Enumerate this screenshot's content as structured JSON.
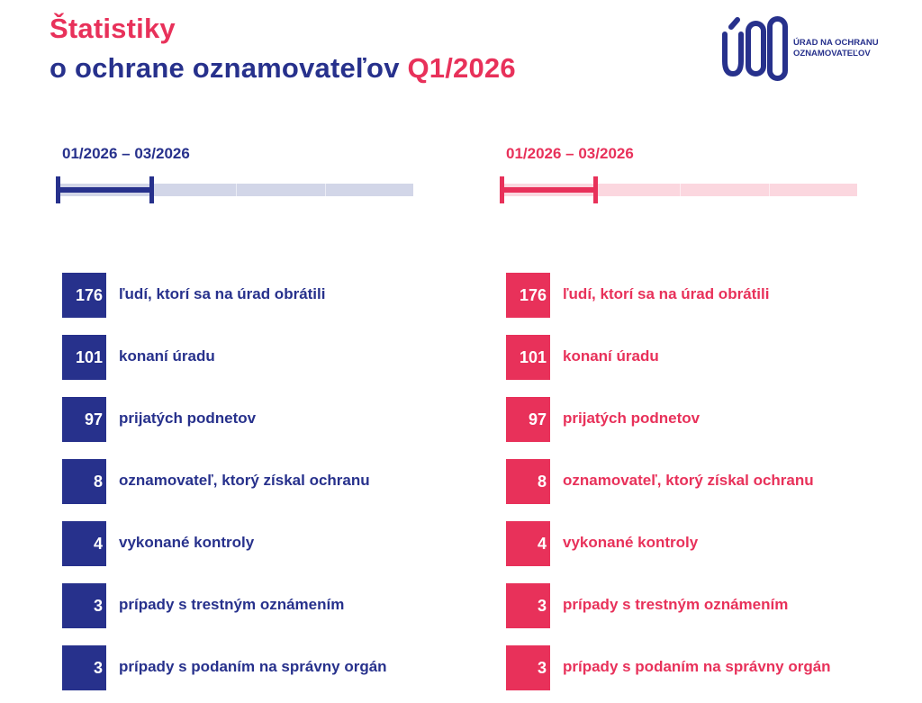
{
  "header": {
    "title_line1": "Štatistiky",
    "title_line2_main": "o ochrane oznamovateľov",
    "title_line2_accent": "Q1/2026"
  },
  "logo": {
    "mark": "ÚOO",
    "line1": "ÚRAD NA OCHRANU",
    "line2": "OZNAMOVATEĽOV"
  },
  "colors": {
    "navy": "#27318c",
    "pink": "#e8315a",
    "navy_light": "#d2d6e8",
    "pink_light": "#fbd7df"
  },
  "columns": [
    {
      "theme": "navy",
      "period": "01/2026 – 03/2026",
      "progress_fraction": 0.25,
      "stats": [
        {
          "value": "176",
          "label": "ľudí, ktorí sa na úrad obrátili"
        },
        {
          "value": "101",
          "label": "konaní úradu"
        },
        {
          "value": "97",
          "label": "prijatých podnetov"
        },
        {
          "value": "8",
          "label": "oznamovateľ, ktorý získal ochranu"
        },
        {
          "value": "4",
          "label": "vykonané kontroly"
        },
        {
          "value": "3",
          "label": "prípady s trestným oznámením"
        },
        {
          "value": "3",
          "label": "prípady s podaním na správny orgán"
        }
      ]
    },
    {
      "theme": "pink",
      "period": "01/2026 – 03/2026",
      "progress_fraction": 0.25,
      "stats": [
        {
          "value": "176",
          "label": "ľudí, ktorí sa na úrad obrátili"
        },
        {
          "value": "101",
          "label": "konaní úradu"
        },
        {
          "value": "97",
          "label": "prijatých podnetov"
        },
        {
          "value": "8",
          "label": "oznamovateľ, ktorý získal ochranu"
        },
        {
          "value": "4",
          "label": "vykonané kontroly"
        },
        {
          "value": "3",
          "label": "prípady s trestným oznámením"
        },
        {
          "value": "3",
          "label": "prípady s podaním na správny orgán"
        }
      ]
    }
  ]
}
